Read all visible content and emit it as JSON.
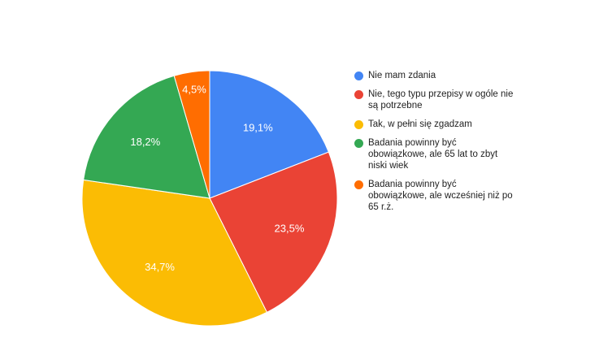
{
  "chart_data": {
    "type": "pie",
    "series": [
      {
        "name": "Nie mam zdania",
        "value": 19.1,
        "label": "19,1%",
        "color": "#4285F4"
      },
      {
        "name": "Nie, tego typu przepisy w ogóle nie są potrzebne",
        "value": 23.5,
        "label": "23,5%",
        "color": "#EA4335"
      },
      {
        "name": "Tak, w pełni się zgadzam",
        "value": 34.7,
        "label": "34,7%",
        "color": "#FBBC04"
      },
      {
        "name": "Badania powinny być obowiązkowe, ale 65 lat to zbyt niski wiek",
        "value": 18.2,
        "label": "18,2%",
        "color": "#34A853"
      },
      {
        "name": "Badania powinny być obowiązkowe, ale wcześniej niż po 65 r.ż.",
        "value": 4.5,
        "label": "4,5%",
        "color": "#FF6D01"
      }
    ],
    "legend_position": "right"
  }
}
